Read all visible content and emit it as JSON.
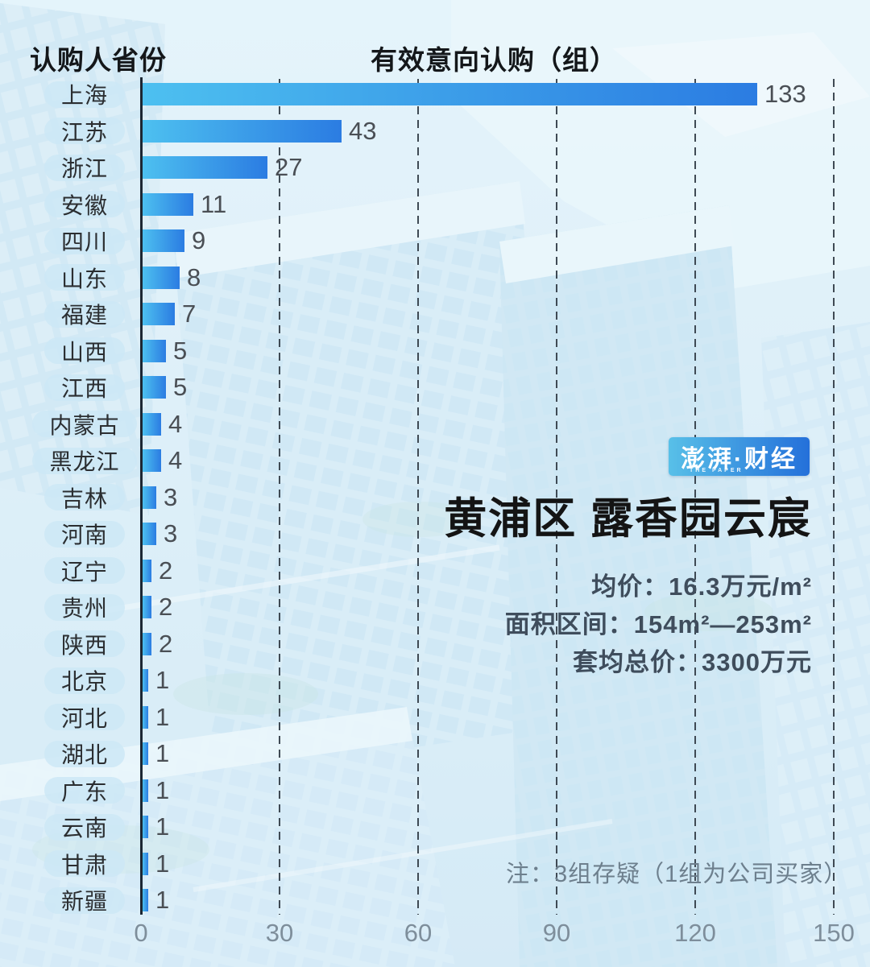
{
  "header": {
    "province_label": "认购人省份",
    "value_label": "有效意向认购（组）"
  },
  "chart_data": {
    "type": "bar",
    "orientation": "horizontal",
    "title": "有效意向认购（组）",
    "categories": [
      "上海",
      "江苏",
      "浙江",
      "安徽",
      "四川",
      "山东",
      "福建",
      "山西",
      "江西",
      "内蒙古",
      "黑龙江",
      "吉林",
      "河南",
      "辽宁",
      "贵州",
      "陕西",
      "北京",
      "河北",
      "湖北",
      "广东",
      "云南",
      "甘肃",
      "新疆"
    ],
    "values": [
      133,
      43,
      27,
      11,
      9,
      8,
      7,
      5,
      5,
      4,
      4,
      3,
      3,
      2,
      2,
      2,
      1,
      1,
      1,
      1,
      1,
      1,
      1
    ],
    "xlabel": "",
    "ylabel": "认购人省份",
    "xlim": [
      0,
      150
    ],
    "xticks": [
      0,
      30,
      60,
      90,
      120,
      150
    ],
    "grid": "dashed-vertical",
    "legend": "none"
  },
  "info": {
    "logo_text": "澎湃·财经",
    "logo_subtext": "THE PAPER",
    "title": "黄浦区  露香园云宸",
    "stats": [
      {
        "label": "均价：",
        "value": "16.3万元/m²"
      },
      {
        "label": "面积区间：",
        "value": "154m²—253m²"
      },
      {
        "label": "套均总价：",
        "value": "3300万元"
      }
    ]
  },
  "note": "注：3组存疑（1组为公司买家）",
  "colors": {
    "bar_gradient_start": "#4dc0f0",
    "bar_gradient_end": "#2b7ce2",
    "axis_line": "#1c2733",
    "gridline": "#3f4a54",
    "tick_text": "#7e8e9b",
    "value_text": "#4a4f55",
    "pill_bg": "rgba(205,232,246,0.85)",
    "title_text": "#141414",
    "stat_text": "#3f4d5c",
    "note_text": "#6d7f8d",
    "logo_from": "#58c0e8",
    "logo_to": "#2470da",
    "background": "#dceef8"
  }
}
